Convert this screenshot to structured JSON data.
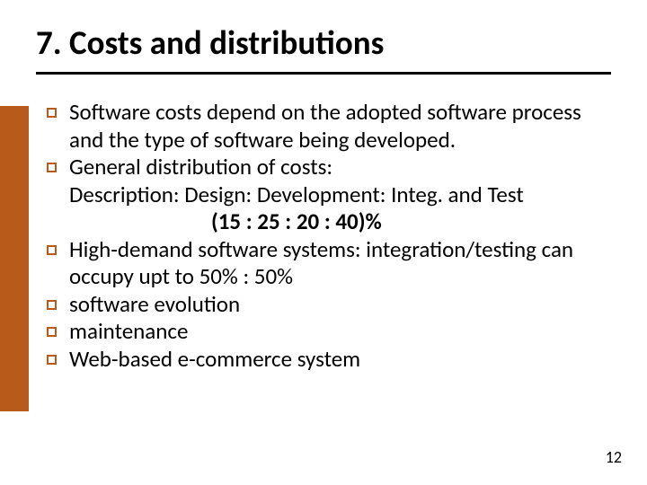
{
  "title": "7. Costs and distributions",
  "sidebar_color": "#b85a1a",
  "bullet_border_color": "#b85a1a",
  "hr_color": "#000000",
  "text_color": "#000000",
  "background_color": "#ffffff",
  "title_fontsize": 37,
  "body_fontsize": 25,
  "bullets": [
    {
      "lines": [
        "Software costs depend on the adopted software process and the type of software being developed."
      ]
    },
    {
      "lines": [
        "General distribution of costs:",
        "Description: Design: Development: Integ. and Test"
      ],
      "ratio": "(15 : 25 : 20 : 40)%"
    },
    {
      "lines": [
        "High-demand software systems: integration/testing can occupy upt to 50% : 50%"
      ]
    },
    {
      "lines": [
        "software evolution"
      ]
    },
    {
      "lines": [
        "maintenance"
      ]
    },
    {
      "lines": [
        "Web-based e-commerce system"
      ]
    }
  ],
  "page_number": "12"
}
